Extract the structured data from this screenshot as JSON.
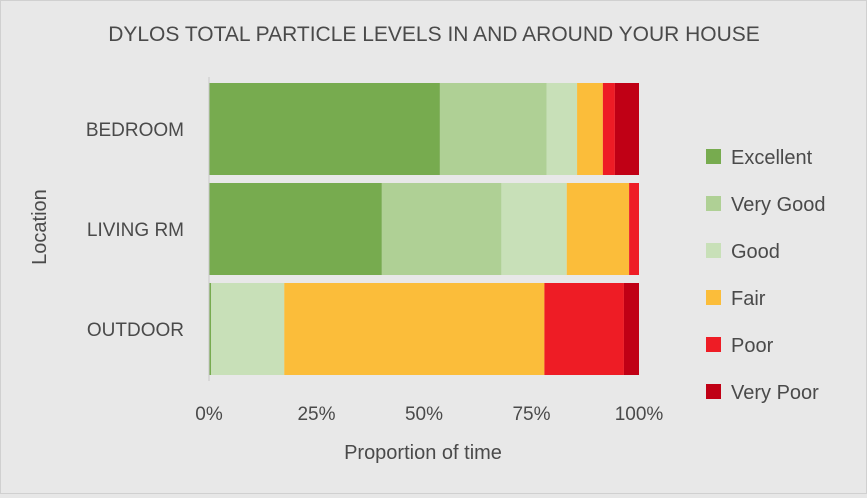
{
  "chart_data": {
    "type": "bar",
    "orientation": "horizontal",
    "stacked": "percent",
    "title": "DYLOS TOTAL PARTICLE LEVELS IN AND AROUND YOUR HOUSE",
    "xlabel": "Proportion of time",
    "ylabel": "Location",
    "xlim": [
      0,
      1
    ],
    "x_ticks": [
      "0%",
      "25%",
      "50%",
      "75%",
      "100%"
    ],
    "grid": false,
    "legend_position": "right",
    "categories": [
      "BEDROOM",
      "LIVING RM",
      "OUTDOOR"
    ],
    "series": [
      {
        "name": "Excellent",
        "color": "#77ab4f",
        "values": [
          0.537,
          0.402,
          0.005
        ]
      },
      {
        "name": "Very Good",
        "color": "#afd095",
        "values": [
          0.248,
          0.278,
          0.0
        ]
      },
      {
        "name": "Good",
        "color": "#c8e0b8",
        "values": [
          0.071,
          0.152,
          0.17
        ]
      },
      {
        "name": "Fair",
        "color": "#fbbd3a",
        "values": [
          0.06,
          0.145,
          0.605
        ]
      },
      {
        "name": "Poor",
        "color": "#ee1c25",
        "values": [
          0.028,
          0.023,
          0.185
        ]
      },
      {
        "name": "Very Poor",
        "color": "#c00015",
        "values": [
          0.056,
          0.0,
          0.035
        ]
      }
    ]
  }
}
